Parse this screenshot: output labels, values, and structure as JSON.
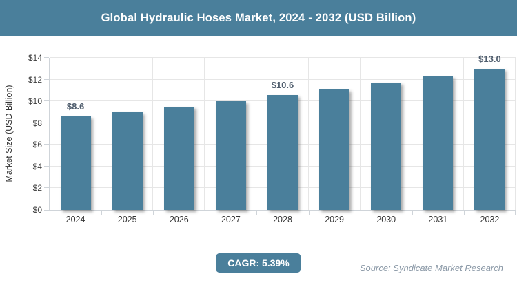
{
  "header": {
    "title": "Global Hydraulic Hoses Market, 2024 - 2032 (USD Billion)"
  },
  "chart_data": {
    "type": "bar",
    "title": "Global Hydraulic Hoses Market, 2024 - 2032 (USD Billion)",
    "categories": [
      "2024",
      "2025",
      "2026",
      "2027",
      "2028",
      "2029",
      "2030",
      "2031",
      "2032"
    ],
    "values": [
      8.6,
      9.0,
      9.5,
      10.0,
      10.6,
      11.1,
      11.7,
      12.3,
      13.0
    ],
    "point_labels": [
      {
        "index": 0,
        "label": "$8.6"
      },
      {
        "index": 4,
        "label": "$10.6"
      },
      {
        "index": 8,
        "label": "$13.0"
      }
    ],
    "xlabel": "",
    "ylabel": "Market Size (USD Billion)",
    "ylim": [
      0,
      14
    ],
    "ytick_step": 2,
    "ytick_labels": [
      "$0",
      "$2",
      "$4",
      "$6",
      "$8",
      "$10",
      "$12",
      "$14"
    ],
    "grid": true,
    "legend": "none"
  },
  "colors": {
    "accent": "#4a7f9b",
    "grid_line": "#e6e6e6",
    "axis_line": "#cfd4d9",
    "data_label": "#4f5d6d",
    "source_text": "#8b99a7"
  },
  "footer": {
    "cagr_label": "CAGR: 5.39%",
    "source": "Source: Syndicate Market Research"
  }
}
